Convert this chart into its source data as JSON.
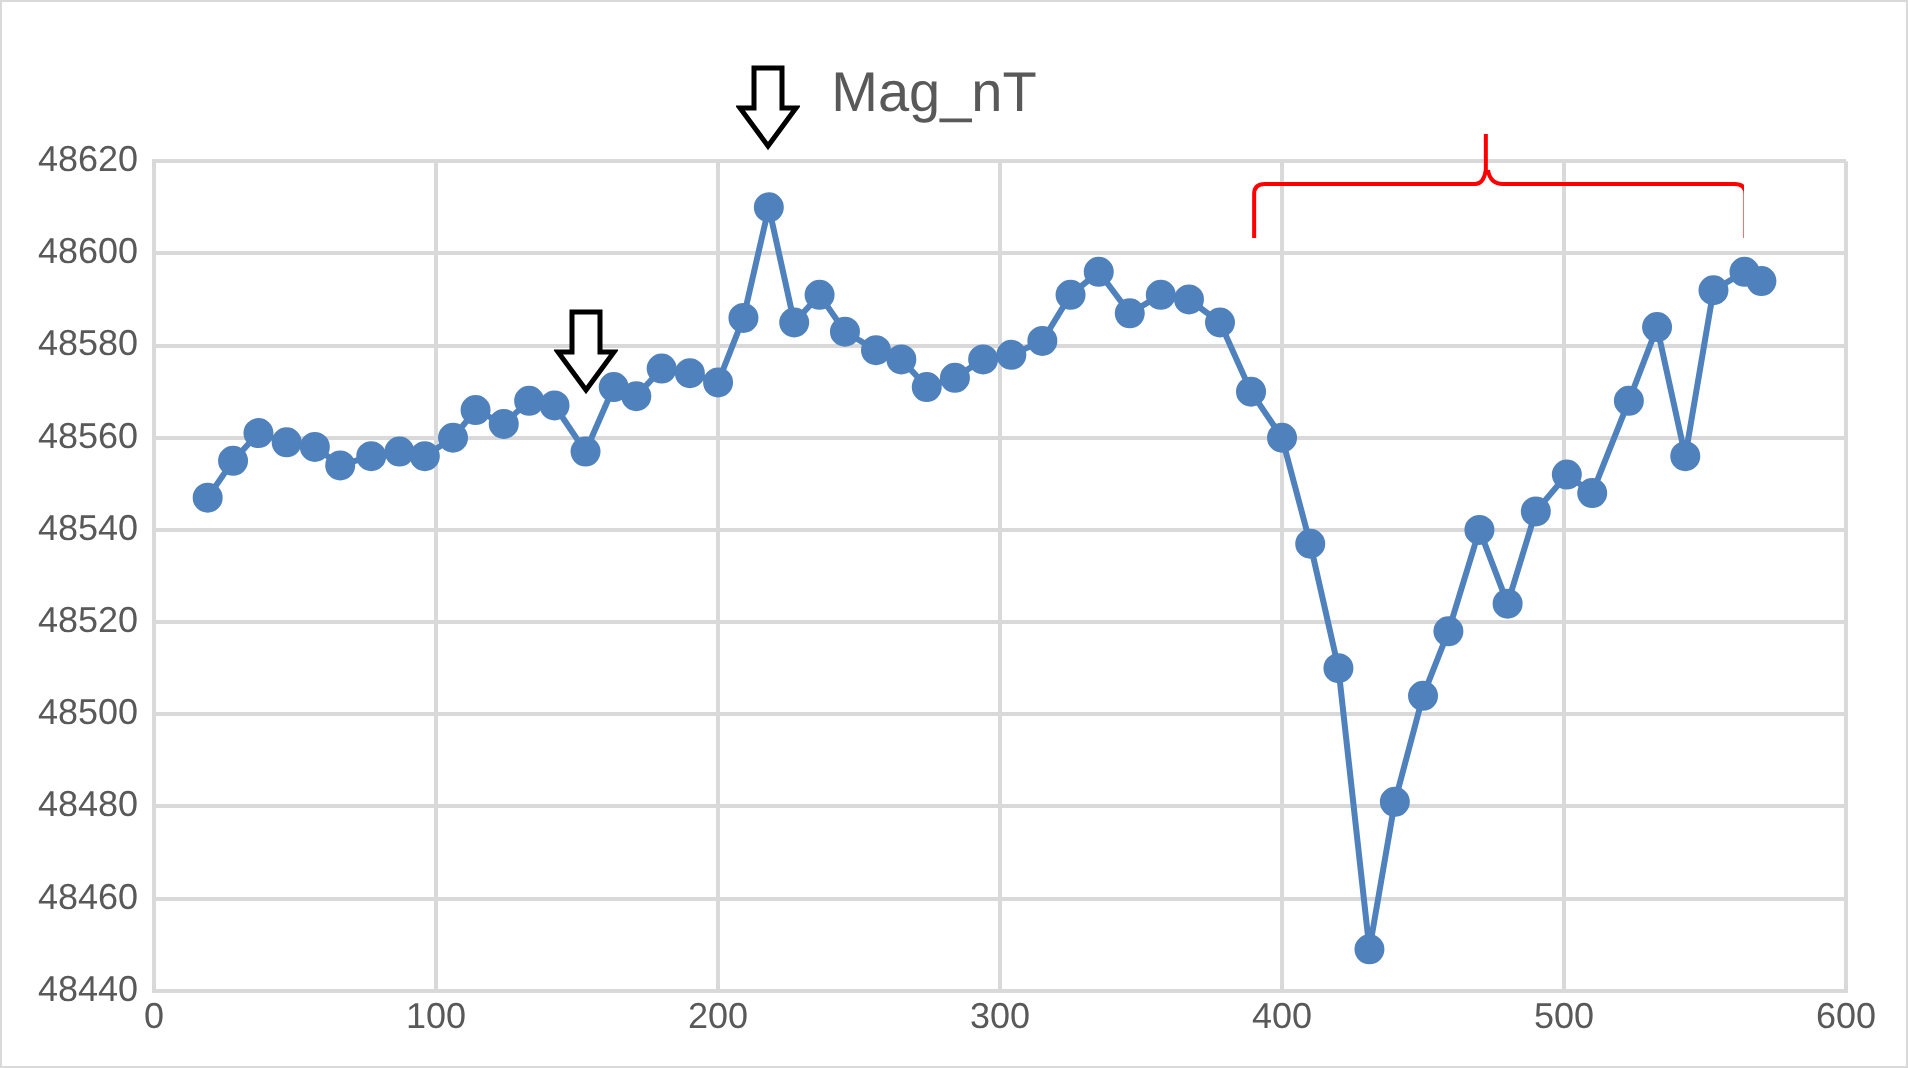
{
  "chart_data": {
    "type": "line",
    "title": "Mag_nT",
    "x": [
      19,
      28,
      37,
      47,
      57,
      66,
      77,
      87,
      96,
      106,
      114,
      124,
      133,
      142,
      153,
      163,
      171,
      180,
      190,
      200,
      209,
      218,
      227,
      236,
      245,
      256,
      265,
      274,
      284,
      294,
      304,
      315,
      325,
      335,
      346,
      357,
      367,
      378,
      389,
      400,
      410,
      420,
      431,
      440,
      450,
      459,
      470,
      480,
      490,
      501,
      510,
      523,
      533,
      543,
      553,
      564,
      570
    ],
    "series": [
      {
        "color": "#4f81bd",
        "values": [
          48547,
          48555,
          48561,
          48559,
          48558,
          48554,
          48556,
          48557,
          48556,
          48560,
          48566,
          48563,
          48568,
          48567,
          48557,
          48571,
          48569,
          48575,
          48574,
          48572,
          48586,
          48610,
          48585,
          48591,
          48583,
          48579,
          48577,
          48571,
          48573,
          48577,
          48578,
          48581,
          48591,
          48596,
          48587,
          48591,
          48590,
          48585,
          48570,
          48560,
          48537,
          48510,
          48449,
          48481,
          48504,
          48518,
          48540,
          48524,
          48544,
          48552,
          48548,
          48568,
          48584,
          48556,
          48592,
          48596,
          48594
        ]
      }
    ],
    "xlim": [
      0,
      600
    ],
    "xticks": [
      0,
      100,
      200,
      300,
      400,
      500,
      600
    ],
    "ylim": [
      48440,
      48620
    ],
    "yticks": [
      48440,
      48460,
      48480,
      48500,
      48520,
      48540,
      48560,
      48580,
      48600,
      48620
    ],
    "grid": true,
    "legend": false,
    "marker": "circle",
    "line_style": "solid"
  }
}
